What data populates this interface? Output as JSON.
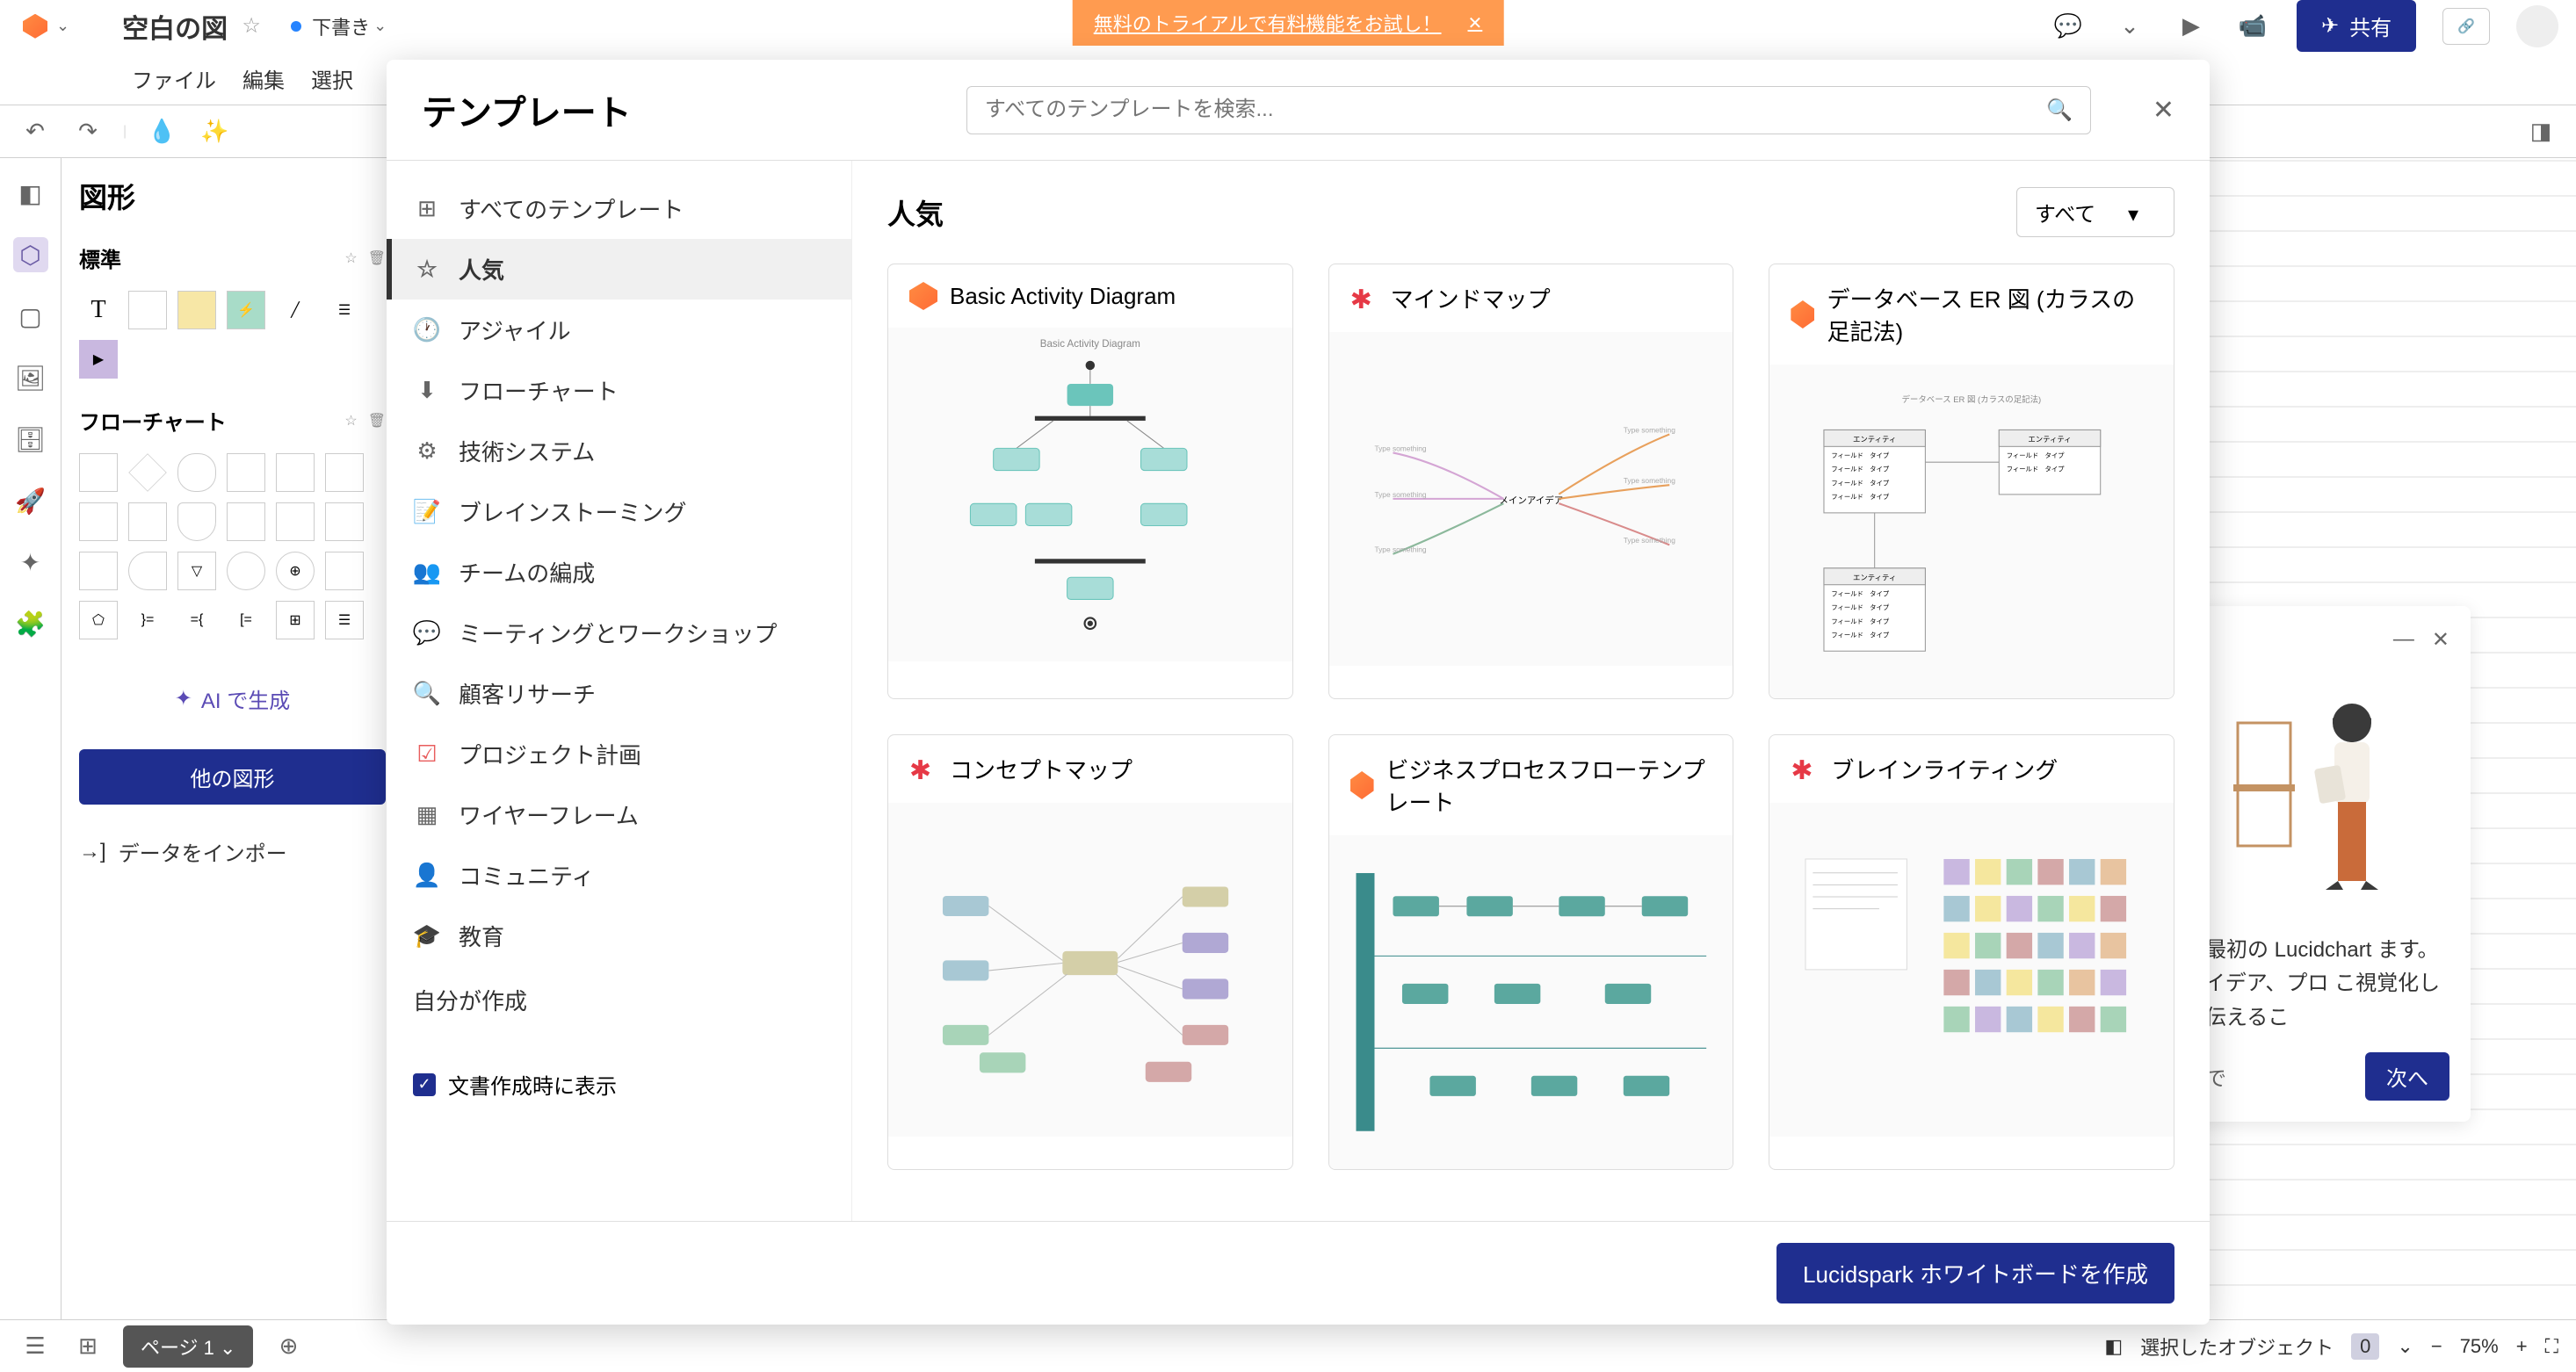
{
  "topbar": {
    "doc_title": "空白の図",
    "status": "下書き",
    "trial_banner": "無料のトライアルで有料機能をお試し！",
    "share_label": "共有"
  },
  "menubar": {
    "items": [
      "ファイル",
      "編集",
      "選択",
      "",
      "",
      "",
      ""
    ]
  },
  "shapes_panel": {
    "title": "図形",
    "standard_label": "標準",
    "flowchart_label": "フローチャート",
    "ai_generate": "AI で生成",
    "other_shapes": "他の図形",
    "import_data": "データをインポー"
  },
  "modal": {
    "title": "テンプレート",
    "search_placeholder": "すべてのテンプレートを検索...",
    "categories": [
      {
        "icon": "grid",
        "label": "すべてのテンプレート"
      },
      {
        "icon": "star",
        "label": "人気",
        "active": true
      },
      {
        "icon": "clock",
        "label": "アジャイル"
      },
      {
        "icon": "flow",
        "label": "フローチャート"
      },
      {
        "icon": "tech",
        "label": "技術システム"
      },
      {
        "icon": "note",
        "label": "ブレインストーミング"
      },
      {
        "icon": "team",
        "label": "チームの編成"
      },
      {
        "icon": "meeting",
        "label": "ミーティングとワークショップ"
      },
      {
        "icon": "search",
        "label": "顧客リサーチ"
      },
      {
        "icon": "check",
        "label": "プロジェクト計画"
      },
      {
        "icon": "wire",
        "label": "ワイヤーフレーム"
      },
      {
        "icon": "community",
        "label": "コミュニティ"
      },
      {
        "icon": "edu",
        "label": "教育"
      }
    ],
    "self_created": "自分が作成",
    "show_on_create": "文書作成時に表示",
    "area_title": "人気",
    "filter_label": "すべて",
    "templates": [
      {
        "logo": "lucid",
        "title": "Basic Activity Diagram"
      },
      {
        "logo": "spark",
        "title": "マインドマップ"
      },
      {
        "logo": "lucid",
        "title": "データベース ER 図 (カラスの足記法)"
      },
      {
        "logo": "spark",
        "title": "コンセプトマップ"
      },
      {
        "logo": "lucid",
        "title": "ビジネスプロセスフローテンプレート"
      },
      {
        "logo": "spark",
        "title": "ブレインライティング"
      }
    ],
    "footer_btn": "Lucidspark ホワイトボードを作成"
  },
  "onboard": {
    "text": "で最初の Lucidchart ます。アイデア、プロ こ視覚化して伝えるこ",
    "later": "後で",
    "next": "次へ"
  },
  "bottombar": {
    "page_tab": "ページ 1",
    "selected_label": "選択したオブジェクト",
    "selected_count": "0",
    "zoom": "75%"
  },
  "colors": {
    "primary": "#1f2e8f",
    "accent": "#ff8c42",
    "banner": "#ff9b50",
    "activity_fill": "#a8ddd8",
    "activity_stroke": "#4bb5ac"
  }
}
